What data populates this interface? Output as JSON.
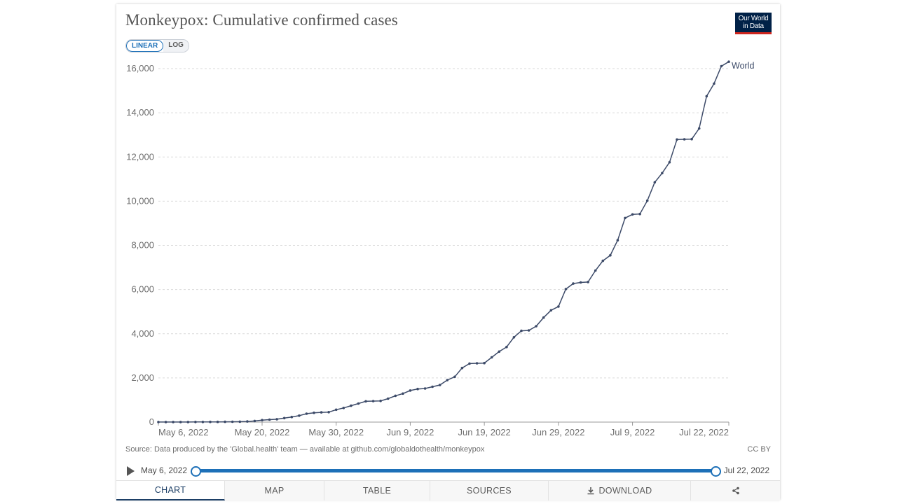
{
  "header": {
    "title": "Monkeypox: Cumulative confirmed cases",
    "logo_line1": "Our World",
    "logo_line2": "in Data"
  },
  "scale_toggle": {
    "linear_label": "LINEAR",
    "log_label": "LOG",
    "selected": "LINEAR"
  },
  "footer": {
    "source": "Source: Data produced by the 'Global.health' team — available at github.com/globaldothealth/monkeypox",
    "license": "CC BY"
  },
  "timeline": {
    "start_label": "May 6, 2022",
    "end_label": "Jul 22, 2022"
  },
  "tabs": [
    {
      "label": "CHART",
      "icon": "",
      "active": true
    },
    {
      "label": "MAP",
      "icon": "",
      "active": false
    },
    {
      "label": "TABLE",
      "icon": "",
      "active": false
    },
    {
      "label": "SOURCES",
      "icon": "",
      "active": false
    },
    {
      "label": "DOWNLOAD",
      "icon": "download-icon",
      "active": false
    },
    {
      "label": "",
      "icon": "share-icon",
      "active": false
    }
  ],
  "colors": {
    "accent": "#1d70b8",
    "line": "#3c4a68",
    "logo_bg": "#002147",
    "logo_bar": "#ce261e"
  },
  "chart_data": {
    "type": "line",
    "title": "Monkeypox: Cumulative confirmed cases",
    "xlabel": "",
    "ylabel": "",
    "x_ticks": [
      "May 6, 2022",
      "May 20, 2022",
      "May 30, 2022",
      "Jun 9, 2022",
      "Jun 19, 2022",
      "Jun 29, 2022",
      "Jul 9, 2022",
      "Jul 22, 2022"
    ],
    "y_ticks": [
      0,
      2000,
      4000,
      6000,
      8000,
      10000,
      12000,
      14000,
      16000
    ],
    "ylim": [
      0,
      16000
    ],
    "xlim": [
      "2022-05-06",
      "2022-07-22"
    ],
    "grid": "horizontal dashed",
    "series": [
      {
        "name": "World",
        "points": [
          [
            "2022-05-06",
            2
          ],
          [
            "2022-05-07",
            3
          ],
          [
            "2022-05-08",
            3
          ],
          [
            "2022-05-09",
            4
          ],
          [
            "2022-05-10",
            4
          ],
          [
            "2022-05-11",
            5
          ],
          [
            "2022-05-12",
            6
          ],
          [
            "2022-05-13",
            8
          ],
          [
            "2022-05-14",
            10
          ],
          [
            "2022-05-15",
            12
          ],
          [
            "2022-05-16",
            15
          ],
          [
            "2022-05-17",
            20
          ],
          [
            "2022-05-18",
            30
          ],
          [
            "2022-05-19",
            50
          ],
          [
            "2022-05-20",
            90
          ],
          [
            "2022-05-21",
            110
          ],
          [
            "2022-05-22",
            130
          ],
          [
            "2022-05-23",
            180
          ],
          [
            "2022-05-24",
            230
          ],
          [
            "2022-05-25",
            290
          ],
          [
            "2022-05-26",
            380
          ],
          [
            "2022-05-27",
            420
          ],
          [
            "2022-05-28",
            440
          ],
          [
            "2022-05-29",
            450
          ],
          [
            "2022-05-30",
            560
          ],
          [
            "2022-05-31",
            640
          ],
          [
            "2022-06-01",
            740
          ],
          [
            "2022-06-02",
            840
          ],
          [
            "2022-06-03",
            940
          ],
          [
            "2022-06-04",
            950
          ],
          [
            "2022-06-05",
            960
          ],
          [
            "2022-06-06",
            1060
          ],
          [
            "2022-06-07",
            1190
          ],
          [
            "2022-06-08",
            1290
          ],
          [
            "2022-06-09",
            1430
          ],
          [
            "2022-06-10",
            1500
          ],
          [
            "2022-06-11",
            1520
          ],
          [
            "2022-06-12",
            1600
          ],
          [
            "2022-06-13",
            1680
          ],
          [
            "2022-06-14",
            1900
          ],
          [
            "2022-06-15",
            2050
          ],
          [
            "2022-06-16",
            2450
          ],
          [
            "2022-06-17",
            2650
          ],
          [
            "2022-06-18",
            2660
          ],
          [
            "2022-06-19",
            2670
          ],
          [
            "2022-06-20",
            2930
          ],
          [
            "2022-06-21",
            3190
          ],
          [
            "2022-06-22",
            3400
          ],
          [
            "2022-06-23",
            3840
          ],
          [
            "2022-06-24",
            4130
          ],
          [
            "2022-06-25",
            4150
          ],
          [
            "2022-06-26",
            4340
          ],
          [
            "2022-06-27",
            4730
          ],
          [
            "2022-06-28",
            5060
          ],
          [
            "2022-06-29",
            5230
          ],
          [
            "2022-06-30",
            6020
          ],
          [
            "2022-07-01",
            6270
          ],
          [
            "2022-07-02",
            6320
          ],
          [
            "2022-07-03",
            6340
          ],
          [
            "2022-07-04",
            6860
          ],
          [
            "2022-07-05",
            7300
          ],
          [
            "2022-07-06",
            7550
          ],
          [
            "2022-07-07",
            8230
          ],
          [
            "2022-07-08",
            9240
          ],
          [
            "2022-07-09",
            9400
          ],
          [
            "2022-07-10",
            9420
          ],
          [
            "2022-07-11",
            10020
          ],
          [
            "2022-07-12",
            10850
          ],
          [
            "2022-07-13",
            11270
          ],
          [
            "2022-07-14",
            11760
          ],
          [
            "2022-07-15",
            12790
          ],
          [
            "2022-07-16",
            12800
          ],
          [
            "2022-07-17",
            12810
          ],
          [
            "2022-07-18",
            13290
          ],
          [
            "2022-07-19",
            14750
          ],
          [
            "2022-07-20",
            15320
          ],
          [
            "2022-07-21",
            16110
          ],
          [
            "2022-07-22",
            16310
          ]
        ]
      }
    ]
  }
}
